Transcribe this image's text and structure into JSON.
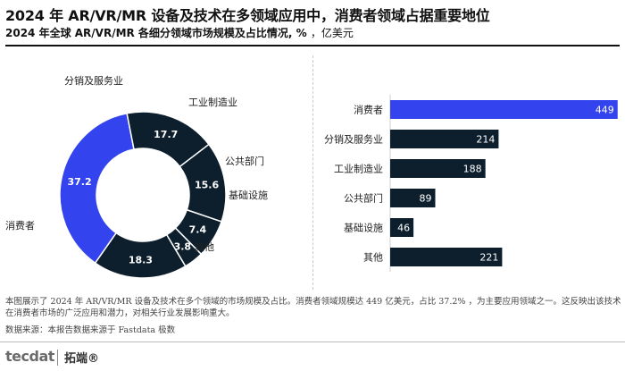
{
  "header": {
    "title": "2024 年 AR/VR/MR 设备及技术在多领域应用中，消费者领域占据重要地位",
    "subtitle": "2024 年全球 AR/VR/MR 各细分领域市场规模及占比情况, % ",
    "unit": "，亿美元"
  },
  "colors": {
    "consumer": "#3344ee",
    "other": "#0d1f2d"
  },
  "chart_data": [
    {
      "type": "pie",
      "donut": true,
      "unit": "%",
      "slices": [
        {
          "label": "消费者",
          "value": 37.2
        },
        {
          "label": "分销及服务业",
          "value": 17.7
        },
        {
          "label": "工业制造业",
          "value": 15.6
        },
        {
          "label": "公共部门",
          "value": 7.4
        },
        {
          "label": "基础设施",
          "value": 3.8
        },
        {
          "label": "其他",
          "value": 18.3
        }
      ]
    },
    {
      "type": "bar",
      "orientation": "horizontal",
      "categories": [
        "消费者",
        "分销及服务业",
        "工业制造业",
        "公共部门",
        "基础设施",
        "其他"
      ],
      "values": [
        449,
        214,
        188,
        89,
        46,
        221
      ],
      "xlim": [
        0,
        460
      ]
    }
  ],
  "footer": {
    "note": "本图展示了 2024 年 AR/VR/MR 设备及技术在多个领域的市场规模及占比。消费者领域规模达 449 亿美元，占比 37.2% ，为主要应用领域之一。这反映出该技术在消费者市场的广泛应用和潜力，对相关行业发展影响重大。",
    "source": "数据来源：本报告数据来源于 Fastdata 极数",
    "brand_en": "tecdat",
    "brand_cn": "拓端®"
  }
}
